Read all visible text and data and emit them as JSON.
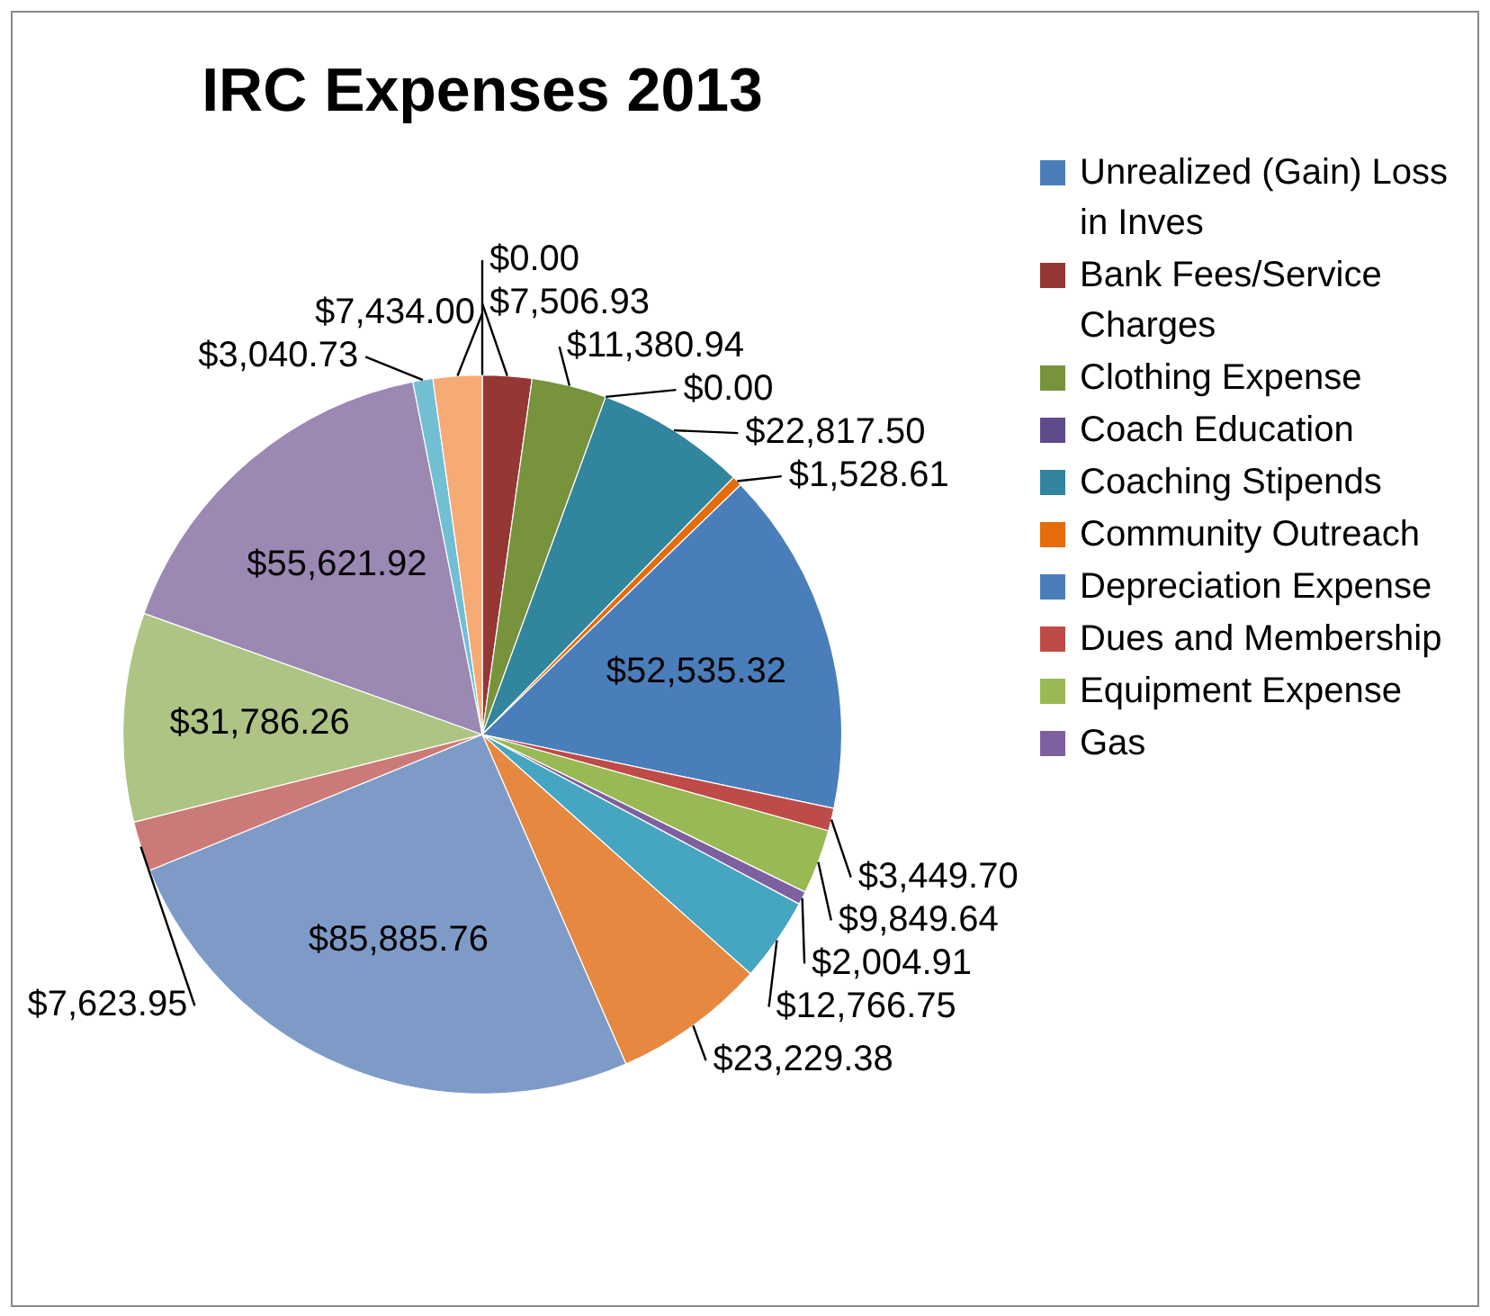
{
  "chart_data": {
    "type": "pie",
    "title": "IRC Expenses 2013",
    "categories": [
      "Unrealized (Gain) Loss in Inves",
      "Bank Fees/Service Charges",
      "Clothing Expense",
      "Coach Education",
      "Coaching Stipends",
      "Community Outreach",
      "Depreciation Expense",
      "Dues and Membership",
      "Equipment Expense",
      "Gas",
      null,
      null,
      null,
      null,
      null,
      null,
      null,
      null
    ],
    "values": [
      0,
      7506.93,
      11380.94,
      0,
      22817.5,
      1528.61,
      52535.32,
      3449.7,
      9849.64,
      2004.91,
      12766.75,
      23229.38,
      85885.76,
      7623.95,
      31786.26,
      55621.92,
      3040.73,
      7434
    ],
    "value_labels": [
      "$0.00",
      "$7,506.93",
      "$11,380.94",
      "$0.00",
      "$22,817.50",
      "$1,528.61",
      "$52,535.32",
      "$3,449.70",
      "$9,849.64",
      "$2,004.91",
      "$12,766.75",
      "$23,229.38",
      "$85,885.76",
      "$7,623.95",
      "$31,786.26",
      "$55,621.92",
      "$3,040.73",
      "$7,434.00"
    ],
    "colors": [
      "#4a7ebb",
      "#953735",
      "#77933c",
      "#5f4b8b",
      "#31859c",
      "#e46c0a",
      "#4a7ebb",
      "#be4b48",
      "#98b954",
      "#7d60a0",
      "#46a5c0",
      "#e6883f",
      "#7e9bc8",
      "#cc7a78",
      "#aec484",
      "#9b88b3",
      "#72bfd4",
      "#f6aa74"
    ],
    "legend": "right"
  }
}
